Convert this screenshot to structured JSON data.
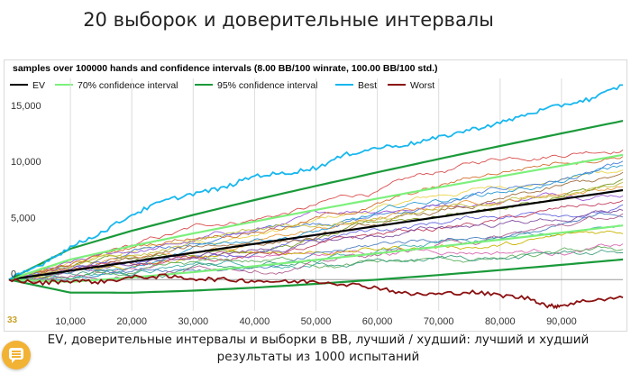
{
  "page": {
    "title": "20 выборок и доверительные интервалы",
    "caption": "EV, доверительные интервалы и выборки в BB, лучший / худший: лучший и худший результаты из 1000 испытаний",
    "page_number": "33"
  },
  "chat_button": {
    "icon": "chat-icon",
    "color": "#f2b233"
  },
  "chart_data": {
    "type": "line",
    "title": "samples over 100000 hands and confidence intervals (8.00 BB/100 winrate, 100.00 BB/100 std.)",
    "xlabel": "",
    "ylabel": "",
    "xlim": [
      0,
      100000
    ],
    "ylim": [
      -2800,
      18000
    ],
    "x_ticks": [
      10000,
      20000,
      30000,
      40000,
      50000,
      60000,
      70000,
      80000,
      90000
    ],
    "x_tick_labels": [
      "10,000",
      "20,000",
      "30,000",
      "40,000",
      "50,000",
      "60,000",
      "70,000",
      "80,000",
      "90,000"
    ],
    "y_ticks": [
      0,
      5000,
      10000,
      15000
    ],
    "y_tick_labels": [
      "0",
      "5,000",
      "10,000",
      "15,000"
    ],
    "grid": {
      "vertical": true,
      "horizontal": false,
      "zero_line": true
    },
    "legend_position": "top-left",
    "legend": [
      {
        "name": "EV",
        "color": "#000000"
      },
      {
        "name": "70% confidence interval",
        "color": "#7cf07c"
      },
      {
        "name": "95% confidence interval",
        "color": "#1a9a3a"
      },
      {
        "name": "Best",
        "color": "#18b7ee"
      },
      {
        "name": "Worst",
        "color": "#8b1010"
      }
    ],
    "winrate_bb_per_100": 8,
    "std_bb_per_100": 100,
    "series": [
      {
        "name": "EV",
        "color": "#000000",
        "points": [
          [
            0,
            0
          ],
          [
            10000,
            800
          ],
          [
            20000,
            1600
          ],
          [
            30000,
            2400
          ],
          [
            40000,
            3200
          ],
          [
            50000,
            4000
          ],
          [
            60000,
            4800
          ],
          [
            70000,
            5600
          ],
          [
            80000,
            6400
          ],
          [
            90000,
            7200
          ],
          [
            100000,
            8000
          ]
        ]
      },
      {
        "name": "70% confidence interval",
        "color": "#7cf07c",
        "upper": [
          [
            0,
            0
          ],
          [
            10000,
            1800
          ],
          [
            20000,
            3010
          ],
          [
            30000,
            4130
          ],
          [
            40000,
            5200
          ],
          [
            50000,
            6240
          ],
          [
            60000,
            7250
          ],
          [
            70000,
            8250
          ],
          [
            80000,
            9230
          ],
          [
            90000,
            10200
          ],
          [
            100000,
            11160
          ]
        ],
        "lower": [
          [
            0,
            0
          ],
          [
            10000,
            -200
          ],
          [
            20000,
            190
          ],
          [
            30000,
            670
          ],
          [
            40000,
            1200
          ],
          [
            50000,
            1760
          ],
          [
            60000,
            2350
          ],
          [
            70000,
            2950
          ],
          [
            80000,
            3570
          ],
          [
            90000,
            4200
          ],
          [
            100000,
            4840
          ]
        ]
      },
      {
        "name": "95% confidence interval",
        "color": "#1a9a3a",
        "upper": [
          [
            0,
            0
          ],
          [
            10000,
            2760
          ],
          [
            20000,
            4370
          ],
          [
            30000,
            5790
          ],
          [
            40000,
            7120
          ],
          [
            50000,
            8380
          ],
          [
            60000,
            9600
          ],
          [
            70000,
            10790
          ],
          [
            80000,
            11950
          ],
          [
            90000,
            13080
          ],
          [
            100000,
            14200
          ]
        ],
        "lower": [
          [
            0,
            0
          ],
          [
            10000,
            -1160
          ],
          [
            20000,
            -1170
          ],
          [
            30000,
            -990
          ],
          [
            40000,
            -720
          ],
          [
            50000,
            -380
          ],
          [
            60000,
            0
          ],
          [
            70000,
            410
          ],
          [
            80000,
            850
          ],
          [
            90000,
            1320
          ],
          [
            100000,
            1800
          ]
        ]
      },
      {
        "name": "Best",
        "color": "#18b7ee",
        "points": [
          [
            0,
            0
          ],
          [
            5000,
            1300
          ],
          [
            10000,
            2900
          ],
          [
            15000,
            4200
          ],
          [
            20000,
            5800
          ],
          [
            25000,
            7000
          ],
          [
            30000,
            7700
          ],
          [
            35000,
            8200
          ],
          [
            40000,
            9300
          ],
          [
            45000,
            9500
          ],
          [
            50000,
            10000
          ],
          [
            55000,
            11200
          ],
          [
            60000,
            11800
          ],
          [
            65000,
            12100
          ],
          [
            70000,
            12700
          ],
          [
            75000,
            13400
          ],
          [
            80000,
            14000
          ],
          [
            85000,
            14900
          ],
          [
            90000,
            15600
          ],
          [
            95000,
            16200
          ],
          [
            100000,
            17400
          ]
        ]
      },
      {
        "name": "Worst",
        "color": "#8b1010",
        "points": [
          [
            0,
            0
          ],
          [
            5000,
            -300
          ],
          [
            10000,
            -100
          ],
          [
            15000,
            -200
          ],
          [
            20000,
            200
          ],
          [
            25000,
            300
          ],
          [
            30000,
            100
          ],
          [
            35000,
            0
          ],
          [
            40000,
            -100
          ],
          [
            45000,
            -200
          ],
          [
            50000,
            -150
          ],
          [
            55000,
            -400
          ],
          [
            60000,
            -700
          ],
          [
            65000,
            -1300
          ],
          [
            70000,
            -1300
          ],
          [
            75000,
            -1100
          ],
          [
            80000,
            -1400
          ],
          [
            85000,
            -1700
          ],
          [
            88000,
            -2400
          ],
          [
            90000,
            -2300
          ],
          [
            95000,
            -1800
          ],
          [
            100000,
            -1600
          ]
        ]
      }
    ],
    "samples": {
      "count": 20,
      "colors": [
        "#e8d44d",
        "#d94e4e",
        "#4a7fd9",
        "#9a5ad6",
        "#3fb0a8",
        "#e69a3a",
        "#7a9a2a",
        "#d96ab0",
        "#6a6ae0",
        "#c8b400",
        "#2a9ad0",
        "#c04060",
        "#60b060",
        "#a07040",
        "#5080c0",
        "#d07030",
        "#8050a0",
        "#40a080",
        "#c0c040",
        "#b06090"
      ],
      "final_values": [
        9800,
        11600,
        10600,
        7500,
        4800,
        8300,
        9000,
        3200,
        6700,
        4100,
        10200,
        7100,
        2700,
        9600,
        5600,
        11000,
        6200,
        2400,
        8700,
        5900
      ]
    }
  }
}
